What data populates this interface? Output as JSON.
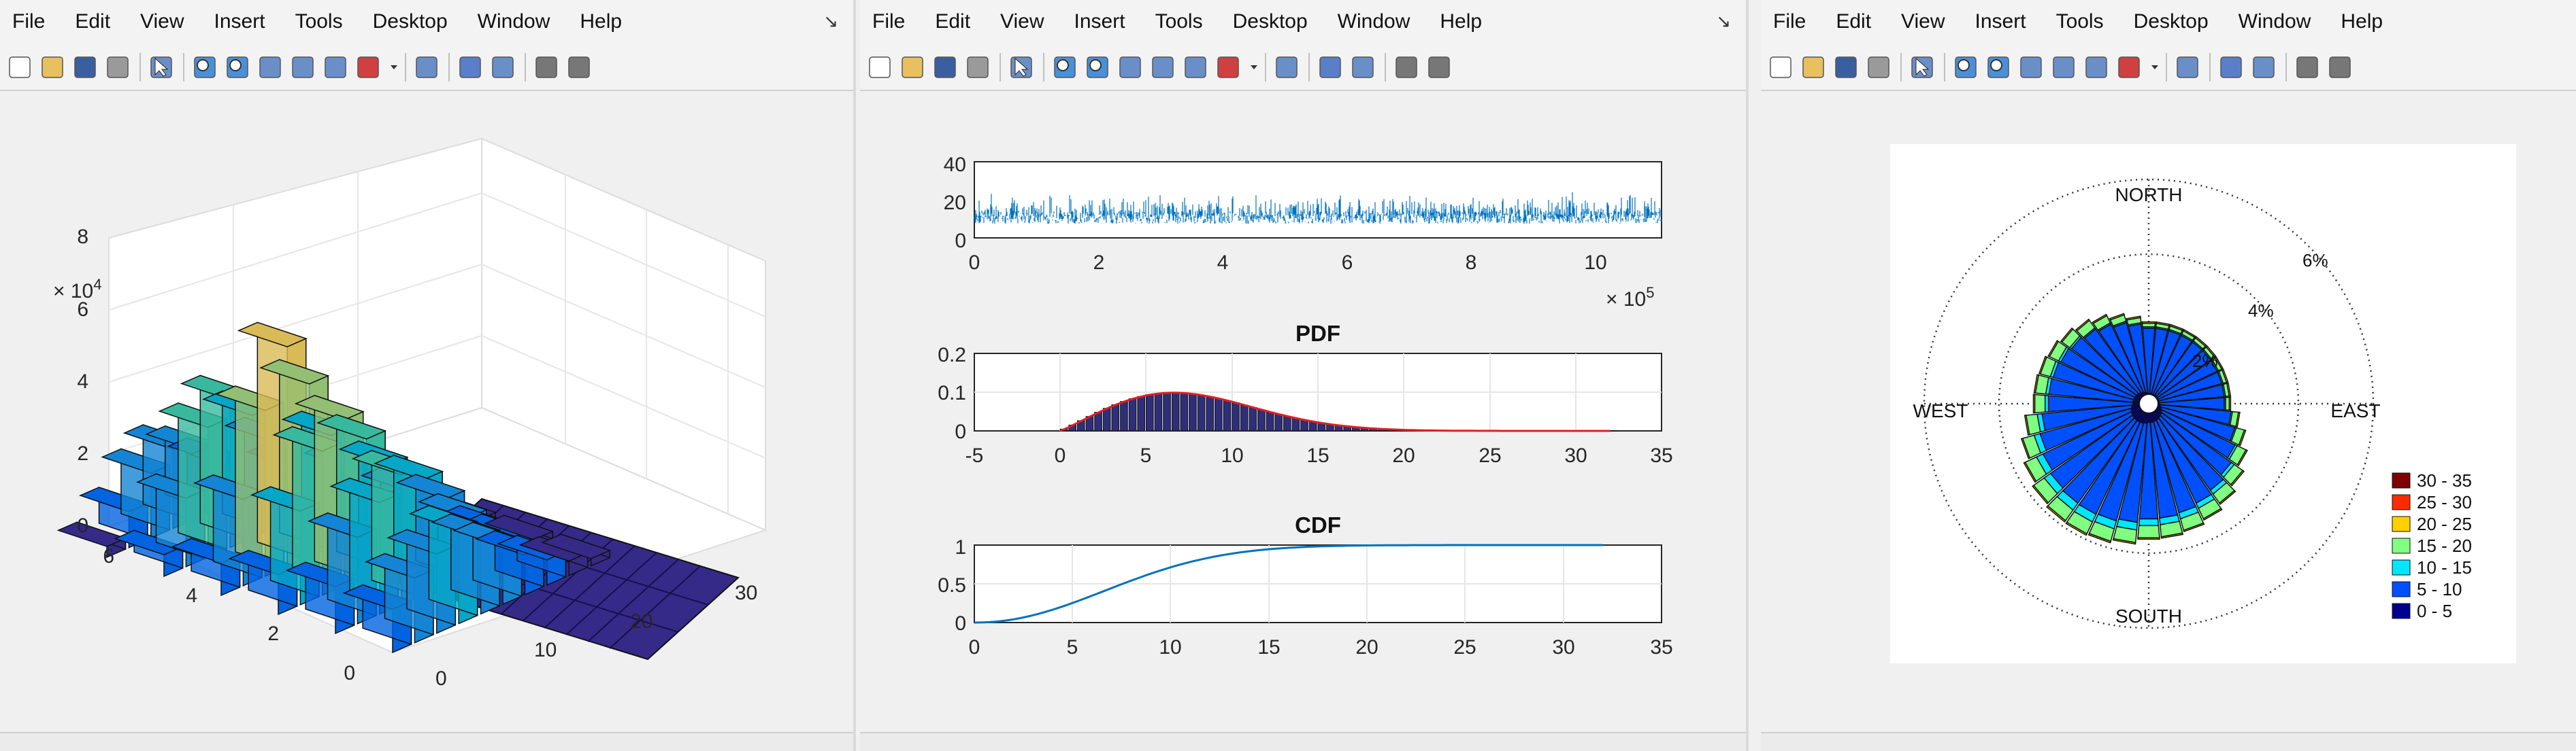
{
  "windows": [
    {
      "menu": [
        "File",
        "Edit",
        "View",
        "Insert",
        "Tools",
        "Desktop",
        "Window",
        "Help"
      ],
      "axes": {
        "exponent_base": "× 10",
        "exponent_power": "4",
        "z_ticks": [
          "8",
          "6",
          "4",
          "2",
          "0"
        ],
        "x_ticks": [
          "0",
          "10",
          "20",
          "30"
        ],
        "y_ticks": [
          "0",
          "2",
          "4",
          "6"
        ]
      }
    },
    {
      "menu": [
        "File",
        "Edit",
        "View",
        "Insert",
        "Tools",
        "Desktop",
        "Window",
        "Help"
      ],
      "top_plot": {
        "y_ticks": [
          "40",
          "20",
          "0"
        ],
        "x_ticks": [
          "0",
          "2",
          "4",
          "6",
          "8",
          "10"
        ],
        "exponent_base": "× 10",
        "exponent_power": "5"
      },
      "pdf_plot": {
        "title": "PDF",
        "y_ticks": [
          "0.2",
          "0.1",
          "0"
        ],
        "x_ticks": [
          "-5",
          "0",
          "5",
          "10",
          "15",
          "20",
          "25",
          "30",
          "35"
        ]
      },
      "cdf_plot": {
        "title": "CDF",
        "y_ticks": [
          "1",
          "0.5",
          "0"
        ],
        "x_ticks": [
          "0",
          "5",
          "10",
          "15",
          "20",
          "25",
          "30",
          "35"
        ]
      }
    },
    {
      "menu": [
        "File",
        "Edit",
        "View",
        "Insert",
        "Tools",
        "Desktop",
        "Window",
        "Help"
      ],
      "rose": {
        "directions": {
          "north": "NORTH",
          "south": "SOUTH",
          "east": "EAST",
          "west": "WEST"
        },
        "ring_labels": [
          "2%",
          "4%",
          "6%"
        ],
        "legend": [
          {
            "label": "30 - 35",
            "color": "#7f0000"
          },
          {
            "label": "25 - 30",
            "color": "#ff2a00"
          },
          {
            "label": "20 - 25",
            "color": "#ffcf00"
          },
          {
            "label": "15 - 20",
            "color": "#80ff80"
          },
          {
            "label": "10 - 15",
            "color": "#00e6ff"
          },
          {
            "label": "5 - 10",
            "color": "#0050ff"
          },
          {
            "label": "0 - 5",
            "color": "#00008f"
          }
        ]
      }
    }
  ],
  "colors": {
    "line_blue": "#0072bd",
    "pdf_bar": "#2e2e7a",
    "pdf_fit": "#e02020"
  }
}
